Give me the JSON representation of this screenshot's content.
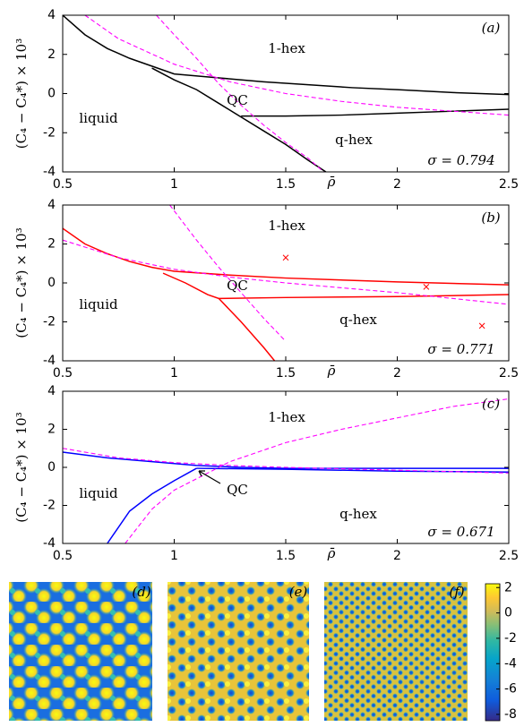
{
  "chart_data": [
    {
      "type": "line",
      "panel_label": "(a)",
      "y_label": "(C₄ − C₄*) × 10³",
      "x_label": "ρ̄",
      "annotations": [
        "1-hex",
        "QC",
        "liquid",
        "q-hex"
      ],
      "sigma_label": "σ = 0.794",
      "xlim": [
        0.5,
        2.5
      ],
      "ylim": [
        -4,
        4
      ],
      "xticks": [
        0.5,
        1,
        1.5,
        2,
        2.5
      ],
      "yticks": [
        -4,
        -2,
        0,
        2,
        4
      ],
      "series": [
        {
          "color": "#000000",
          "style": "solid",
          "x": [
            0.5,
            0.6,
            0.7,
            0.8,
            0.9,
            1.0,
            1.2,
            1.4,
            1.6,
            1.8,
            2.0,
            2.25,
            2.5
          ],
          "values": [
            4,
            3.0,
            2.3,
            1.8,
            1.4,
            1.0,
            0.8,
            0.6,
            0.45,
            0.3,
            0.2,
            0.05,
            -0.05
          ]
        },
        {
          "color": "#000000",
          "style": "solid",
          "x": [
            0.9,
            1.0,
            1.1,
            1.2,
            1.3,
            1.4,
            1.5,
            1.6,
            1.68
          ],
          "values": [
            1.3,
            0.7,
            0.2,
            -0.5,
            -1.2,
            -1.9,
            -2.6,
            -3.4,
            -4
          ]
        },
        {
          "color": "#000000",
          "style": "solid",
          "x": [
            1.3,
            1.5,
            1.75,
            2.0,
            2.25,
            2.5
          ],
          "values": [
            -1.15,
            -1.15,
            -1.1,
            -1.0,
            -0.9,
            -0.8
          ]
        },
        {
          "color": "#ff00ff",
          "style": "dashed",
          "x": [
            0.6,
            0.75,
            1.0,
            1.25,
            1.5,
            1.75,
            2.0,
            2.25,
            2.5
          ],
          "values": [
            4,
            2.8,
            1.5,
            0.6,
            0,
            -0.4,
            -0.7,
            -0.9,
            -1.1
          ]
        },
        {
          "color": "#ff00ff",
          "style": "dashed",
          "x": [
            0.92,
            1.0,
            1.1,
            1.2,
            1.3,
            1.4,
            1.5,
            1.6,
            1.67
          ],
          "values": [
            4,
            3.0,
            1.8,
            0.5,
            -0.6,
            -1.6,
            -2.5,
            -3.3,
            -4
          ]
        }
      ]
    },
    {
      "type": "line",
      "panel_label": "(b)",
      "y_label": "(C₄ − C₄*) × 10³",
      "x_label": "ρ̄",
      "annotations": [
        "1-hex",
        "QC",
        "liquid",
        "q-hex"
      ],
      "sigma_label": "σ = 0.771",
      "xlim": [
        0.5,
        2.5
      ],
      "ylim": [
        -4,
        4
      ],
      "xticks": [
        0.5,
        1,
        1.5,
        2,
        2.5
      ],
      "yticks": [
        -4,
        -2,
        0,
        2,
        4
      ],
      "series": [
        {
          "color": "#ff0000",
          "style": "solid",
          "x": [
            0.5,
            0.6,
            0.7,
            0.8,
            0.9,
            1.0,
            1.25,
            1.5,
            2.0,
            2.5
          ],
          "values": [
            2.8,
            2.0,
            1.5,
            1.1,
            0.8,
            0.6,
            0.4,
            0.25,
            0.05,
            -0.1
          ]
        },
        {
          "color": "#ff0000",
          "style": "solid",
          "x": [
            0.95,
            1.05,
            1.15,
            1.2,
            1.3,
            1.4,
            1.45
          ],
          "values": [
            0.5,
            0,
            -0.6,
            -0.8,
            -2.0,
            -3.3,
            -4
          ]
        },
        {
          "color": "#ff0000",
          "style": "solid",
          "x": [
            1.2,
            1.5,
            2.0,
            2.5
          ],
          "values": [
            -0.8,
            -0.75,
            -0.7,
            -0.6
          ]
        },
        {
          "color": "#ff00ff",
          "style": "dashed",
          "x": [
            0.5,
            0.75,
            1.0,
            1.25,
            1.5,
            2.0,
            2.5
          ],
          "values": [
            2.2,
            1.3,
            0.7,
            0.3,
            0,
            -0.5,
            -1.1
          ]
        },
        {
          "color": "#ff00ff",
          "style": "dashed",
          "x": [
            0.98,
            1.1,
            1.2,
            1.3,
            1.4,
            1.5
          ],
          "values": [
            4,
            2.2,
            0.8,
            -0.5,
            -1.8,
            -3.0
          ]
        },
        {
          "color": "#ff0000",
          "style": "marker",
          "x": [
            1.5,
            2.13,
            2.38
          ],
          "values": [
            1.3,
            -0.2,
            -2.2
          ]
        }
      ]
    },
    {
      "type": "line",
      "panel_label": "(c)",
      "y_label": "(C₄ − C₄*) × 10³",
      "x_label": "ρ̄",
      "annotations": [
        "1-hex",
        "QC",
        "liquid",
        "q-hex"
      ],
      "sigma_label": "σ = 0.671",
      "xlim": [
        0.5,
        2.5
      ],
      "ylim": [
        -4,
        4
      ],
      "xticks": [
        0.5,
        1,
        1.5,
        2,
        2.5
      ],
      "yticks": [
        -4,
        -2,
        0,
        2,
        4
      ],
      "series": [
        {
          "color": "#0000ff",
          "style": "solid",
          "x": [
            0.5,
            0.7,
            0.9,
            1.1,
            1.3,
            1.5,
            2.0,
            2.5
          ],
          "values": [
            0.8,
            0.5,
            0.3,
            0.1,
            0,
            -0.05,
            -0.05,
            -0.05
          ]
        },
        {
          "color": "#0000ff",
          "style": "solid",
          "x": [
            0.7,
            0.8,
            0.9,
            1.0,
            1.1
          ],
          "values": [
            -4,
            -2.3,
            -1.4,
            -0.7,
            -0.05
          ]
        },
        {
          "color": "#0000ff",
          "style": "solid",
          "x": [
            1.1,
            1.5,
            2.0,
            2.5
          ],
          "values": [
            -0.05,
            -0.1,
            -0.2,
            -0.25
          ]
        },
        {
          "color": "#ff00ff",
          "style": "dashed",
          "x": [
            0.78,
            0.9,
            1.0,
            1.25,
            1.5,
            1.75,
            2.0,
            2.25,
            2.5
          ],
          "values": [
            -4,
            -2.2,
            -1.2,
            0.3,
            1.3,
            2.0,
            2.6,
            3.2,
            3.6
          ]
        },
        {
          "color": "#ff00ff",
          "style": "dashed",
          "x": [
            0.5,
            0.75,
            1.0,
            1.25,
            1.5,
            2.0,
            2.5
          ],
          "values": [
            1.0,
            0.5,
            0.25,
            0.1,
            0,
            -0.15,
            -0.3
          ]
        }
      ]
    }
  ],
  "images": {
    "labels": [
      "(d)",
      "(e)",
      "(f)"
    ]
  },
  "colorbar": {
    "lim": [
      -8.5,
      2.3
    ],
    "ticks": [
      2,
      0,
      -2,
      -4,
      -6,
      -8
    ]
  }
}
